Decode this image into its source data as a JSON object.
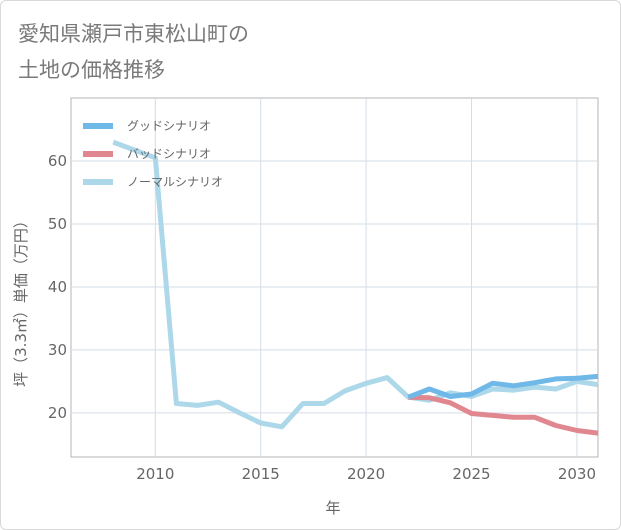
{
  "chart_data": {
    "type": "line",
    "title_lines": [
      "愛知県瀬戸市東松山町の",
      "土地の価格推移"
    ],
    "xlabel": "年",
    "ylabel": "坪（3.3㎡）単価（万円）",
    "xlim": [
      2006,
      2031
    ],
    "ylim": [
      13,
      70
    ],
    "x_ticks": [
      2010,
      2015,
      2020,
      2025,
      2030
    ],
    "y_ticks": [
      20,
      30,
      40,
      50,
      60
    ],
    "grid": true,
    "legend_position": "top-left",
    "series": [
      {
        "name": "グッドシナリオ",
        "color": "#6fb8e8",
        "x": [
          2022,
          2023,
          2024,
          2025,
          2026,
          2027,
          2028,
          2029,
          2030,
          2031
        ],
        "values": [
          22.5,
          23.8,
          22.6,
          23.0,
          24.7,
          24.3,
          24.8,
          25.4,
          25.5,
          25.8
        ]
      },
      {
        "name": "バッドシナリオ",
        "color": "#e0878f",
        "x": [
          2022,
          2023,
          2024,
          2025,
          2026,
          2027,
          2028,
          2029,
          2030,
          2031
        ],
        "values": [
          22.5,
          22.4,
          21.6,
          19.9,
          19.6,
          19.3,
          19.3,
          18.0,
          17.2,
          16.8
        ]
      },
      {
        "name": "ノーマルシナリオ",
        "color": "#add8ea",
        "x": [
          2008,
          2010,
          2011,
          2012,
          2013,
          2014,
          2015,
          2016,
          2017,
          2018,
          2019,
          2020,
          2021,
          2022,
          2023,
          2024,
          2025,
          2026,
          2027,
          2028,
          2029,
          2030,
          2031
        ],
        "values": [
          63.0,
          60.5,
          21.5,
          21.2,
          21.7,
          20.0,
          18.4,
          17.8,
          21.5,
          21.5,
          23.5,
          24.7,
          25.6,
          22.5,
          22.0,
          23.2,
          22.6,
          23.8,
          23.6,
          24.1,
          23.8,
          25.0,
          24.5
        ]
      }
    ]
  }
}
